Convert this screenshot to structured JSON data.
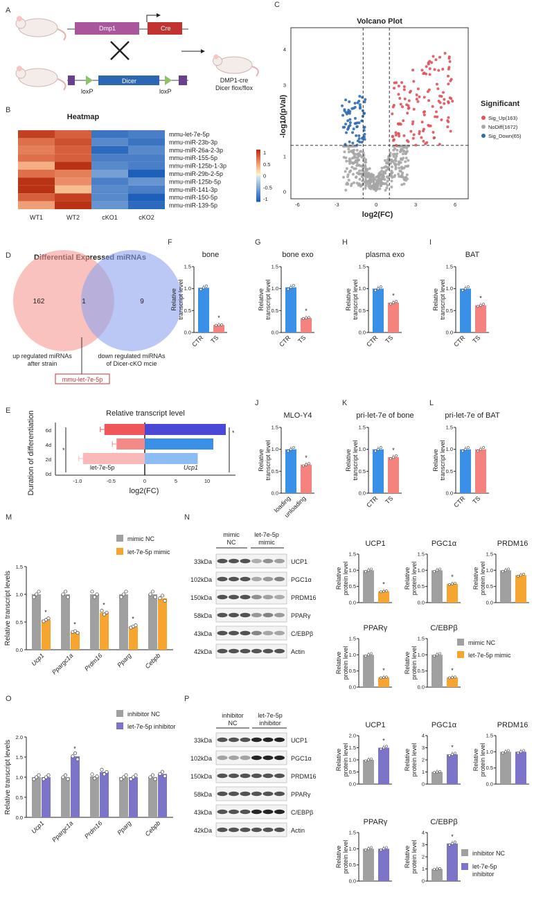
{
  "panels": {
    "A": {
      "label": "A",
      "dmp1": "Dmp1",
      "cre": "Cre",
      "dicer": "Dicer",
      "loxp1": "loxP",
      "loxp2": "loxP",
      "result_line1": "DMP1-cre",
      "result_line2": "Dicer flox/flox"
    },
    "B": {
      "label": "B",
      "title": "Heatmap",
      "samples": [
        "WT1",
        "WT2",
        "cKO1",
        "cKO2"
      ],
      "genes": [
        "mmu-let-7e-5p",
        "mmu-miR-23b-3p",
        "mmu-miR-26a-2-3p",
        "mmu-miR-155-5p",
        "mmu-miR-125b-1-3p",
        "mmu-miR-29b-2-5p",
        "mmu-miR-125b-5p",
        "mmu-miR-141-3p",
        "mmu-miR-150-5p",
        "mmu-miR-139-5p"
      ],
      "values": [
        [
          1.2,
          1.0,
          -1.1,
          -1.0
        ],
        [
          0.9,
          1.1,
          -0.9,
          -1.1
        ],
        [
          0.8,
          1.0,
          -1.2,
          -0.9
        ],
        [
          0.9,
          1.0,
          -1.0,
          -1.0
        ],
        [
          0.5,
          1.3,
          -0.9,
          -1.0
        ],
        [
          0.9,
          0.8,
          -0.7,
          -1.3
        ],
        [
          1.3,
          0.7,
          -1.0,
          -0.8
        ],
        [
          1.3,
          0.4,
          -0.9,
          -1.0
        ],
        [
          1.0,
          1.2,
          -0.9,
          -1.3
        ],
        [
          0.6,
          1.3,
          -0.8,
          -1.2
        ]
      ],
      "scale_ticks": [
        "1",
        "0.5",
        "0",
        "-0.5",
        "-1"
      ]
    },
    "C": {
      "label": "C",
      "title": "Volcano Plot",
      "xlabel": "log2(FC)",
      "ylabel": "-log10(pVal)",
      "xticks": [
        "-6",
        "-3",
        "0",
        "3",
        "6"
      ],
      "yticks": [
        "0",
        "1",
        "2",
        "3",
        "4"
      ],
      "legend_title": "Significant",
      "legend": [
        "Sig_Up(163)",
        "NoDiff(1672)",
        "Sig_Down(65)"
      ],
      "colors": {
        "up": "#e0515b",
        "nodiff": "#a6a6a6",
        "down": "#2f6db2"
      }
    },
    "D": {
      "label": "D",
      "title": "Differential Expressed miRNAs",
      "left_count": "162",
      "overlap_count": "1",
      "right_count": "9",
      "left_caption1": "up regulated miRNAs",
      "left_caption2": "after strain",
      "right_caption1": "down regulated miRNAs",
      "right_caption2": "of Dicer-cKO mcie",
      "callout": "mmu-let-7e-5p"
    },
    "E": {
      "label": "E",
      "title": "Relative transcript level",
      "ylabel": "Duration of differentiation",
      "xlabel": "log2(FC)",
      "categories": [
        "6d",
        "4d",
        "2d",
        "0d"
      ],
      "left_name": "let-7e-5p",
      "right_name": "Ucp1",
      "left_values": [
        -0.6,
        -0.42,
        -0.92,
        0
      ],
      "right_values": [
        13,
        11,
        8.5,
        0
      ],
      "left_ticks": [
        "-1.0",
        "-0.5",
        "0"
      ],
      "right_ticks": [
        "5",
        "10"
      ],
      "star": "*"
    },
    "F": {
      "label": "F",
      "title": "bone"
    },
    "G": {
      "label": "G",
      "title": "bone exo"
    },
    "H": {
      "label": "H",
      "title": "plasma exo"
    },
    "I": {
      "label": "I",
      "title": "BAT"
    },
    "J": {
      "label": "J",
      "title": "MLO-Y4"
    },
    "K": {
      "label": "K",
      "title": "pri-let-7e of bone"
    },
    "L": {
      "label": "L",
      "title": "pri-let-7e of BAT"
    },
    "M": {
      "label": "M",
      "ylabel": "Relative transcript levels",
      "legend": [
        "mimic NC",
        "let-7e-5p mimic"
      ],
      "genes": [
        "Ucp1",
        "Ppargc1a",
        "Prdm16",
        "Pparg",
        "Cebpb"
      ]
    },
    "N": {
      "label": "N",
      "group1": "mimic",
      "group1b": "NC",
      "group2": "let-7e-5p",
      "group2b": "mimic",
      "kda": [
        "33kDa",
        "102kDa",
        "150kDa",
        "58kDa",
        "43kDa",
        "42kDa"
      ],
      "proteins": [
        "UCP1",
        "PGC1α",
        "PRDM16",
        "PPARγ",
        "C/EBPβ",
        "Actin"
      ],
      "legend": [
        "mimic NC",
        "let-7e-5p mimic"
      ]
    },
    "O": {
      "label": "O",
      "ylabel": "Relative transcript levels",
      "legend": [
        "inhibitor NC",
        "let-7e-5p inhibitor"
      ],
      "genes": [
        "Ucp1",
        "Ppargc1a",
        "Prdm16",
        "Pparg",
        "Cebpb"
      ]
    },
    "P": {
      "label": "P",
      "group1": "inhibitor",
      "group1b": "NC",
      "group2": "let-7e-5p",
      "group2b": "inhibitor",
      "kda": [
        "33kDa",
        "102kDa",
        "150kDa",
        "58kDa",
        "43kDa",
        "42kDa"
      ],
      "proteins": [
        "UCP1",
        "PGC1α",
        "PRDM16",
        "PPARγ",
        "C/EBPβ",
        "Actin"
      ],
      "legend": [
        "inhibitor NC",
        "let-7e-5p",
        "inhibitor"
      ]
    }
  },
  "common": {
    "yaxis_relative": "Relative",
    "yaxis_transcript": "transcript level",
    "yaxis_protein": "protein level",
    "star": "*"
  },
  "colors": {
    "ctr": "#3a8fe6",
    "ts": "#f4837d",
    "nc": "#a0a0a0",
    "mimic": "#f7a531",
    "inhibitor": "#7b74c9"
  },
  "chart_data": [
    {
      "type": "bar",
      "title": "bone",
      "categories": [
        "CTR",
        "TS"
      ],
      "values": [
        1.02,
        0.17
      ],
      "ylabel": "Relative transcript level",
      "ylim": [
        0,
        1.5
      ],
      "yticks": [
        "0.0",
        "0.5",
        "1.0",
        "1.5"
      ]
    },
    {
      "type": "bar",
      "title": "bone exo",
      "categories": [
        "CTR",
        "TS"
      ],
      "values": [
        1.03,
        0.33
      ],
      "ylabel": "Relative transcript level",
      "ylim": [
        0,
        1.5
      ],
      "yticks": [
        "0.0",
        "0.5",
        "1.0",
        "1.5"
      ]
    },
    {
      "type": "bar",
      "title": "plasma exo",
      "categories": [
        "CTR",
        "TS"
      ],
      "values": [
        1.0,
        0.68
      ],
      "ylabel": "Relative transcript level",
      "ylim": [
        0,
        1.5
      ],
      "yticks": [
        "0.0",
        "0.5",
        "1.0",
        "1.5"
      ]
    },
    {
      "type": "bar",
      "title": "BAT",
      "categories": [
        "CTR",
        "TS"
      ],
      "values": [
        1.0,
        0.62
      ],
      "ylabel": "Relative transcript level",
      "ylim": [
        0,
        1.5
      ],
      "yticks": [
        "0.0",
        "0.5",
        "1.0",
        "1.5"
      ]
    },
    {
      "type": "bar",
      "title": "MLO-Y4",
      "categories": [
        "loading",
        "unloading"
      ],
      "values": [
        1.0,
        0.65
      ],
      "ylabel": "Relative transcript level",
      "ylim": [
        0,
        1.5
      ],
      "yticks": [
        "0.0",
        "0.5",
        "1.0",
        "1.5"
      ]
    },
    {
      "type": "bar",
      "title": "pri-let-7e of bone",
      "categories": [
        "CTR",
        "TS"
      ],
      "values": [
        1.0,
        0.82
      ],
      "ylabel": "Relative transcript level",
      "ylim": [
        0,
        1.5
      ],
      "yticks": [
        "0.0",
        "0.5",
        "1.0",
        "1.5"
      ]
    },
    {
      "type": "bar",
      "title": "pri-let-7e of BAT",
      "categories": [
        "CTR",
        "TS"
      ],
      "values": [
        1.0,
        1.0
      ],
      "ylabel": "Relative transcript level",
      "ylim": [
        0,
        1.5
      ],
      "yticks": [
        "0.0",
        "0.5",
        "1.0",
        "1.5"
      ]
    },
    {
      "type": "bar",
      "title": "M",
      "categories": [
        "Ucp1",
        "Ppargc1a",
        "Prdm16",
        "Pparg",
        "Cebpb"
      ],
      "series": [
        {
          "name": "mimic NC",
          "values": [
            1.0,
            1.0,
            1.0,
            1.0,
            1.0
          ]
        },
        {
          "name": "let-7e-5p mimic",
          "values": [
            0.54,
            0.32,
            0.67,
            0.42,
            0.93
          ]
        }
      ],
      "ylim": [
        0,
        1.5
      ],
      "yticks": [
        "0.0",
        "0.5",
        "1.0",
        "1.5"
      ]
    },
    {
      "type": "bar",
      "title": "O",
      "categories": [
        "Ucp1",
        "Ppargc1a",
        "Prdm16",
        "Pparg",
        "Cebpb"
      ],
      "series": [
        {
          "name": "inhibitor NC",
          "values": [
            1.0,
            1.0,
            1.02,
            1.0,
            1.0
          ]
        },
        {
          "name": "let-7e-5p inhibitor",
          "values": [
            1.0,
            1.52,
            1.13,
            1.0,
            1.08
          ]
        }
      ],
      "ylim": [
        0,
        2.0
      ],
      "yticks": [
        "0.0",
        "0.5",
        "1.0",
        "1.5",
        "2.0"
      ]
    },
    {
      "type": "bar",
      "title": "N-UCP1",
      "categories": [
        "mimic NC",
        "let-7e-5p mimic"
      ],
      "values": [
        1.0,
        0.35
      ],
      "ylim": [
        0,
        1.5
      ],
      "yticks": [
        "0.0",
        "0.5",
        "1.0",
        "1.5"
      ]
    },
    {
      "type": "bar",
      "title": "N-PGC1α",
      "categories": [
        "mimic NC",
        "let-7e-5p mimic"
      ],
      "values": [
        1.0,
        0.58
      ],
      "ylim": [
        0,
        1.5
      ],
      "yticks": [
        "0.0",
        "0.5",
        "1.0",
        "1.5"
      ]
    },
    {
      "type": "bar",
      "title": "N-PRDM16",
      "categories": [
        "mimic NC",
        "let-7e-5p mimic"
      ],
      "values": [
        1.0,
        0.85
      ],
      "ylim": [
        0,
        1.5
      ],
      "yticks": [
        "0.0",
        "0.5",
        "1.0",
        "1.5"
      ]
    },
    {
      "type": "bar",
      "title": "N-PPARγ",
      "categories": [
        "mimic NC",
        "let-7e-5p mimic"
      ],
      "values": [
        1.0,
        0.3
      ],
      "ylim": [
        0,
        1.5
      ],
      "yticks": [
        "0.0",
        "0.5",
        "1.0",
        "1.5"
      ]
    },
    {
      "type": "bar",
      "title": "N-C/EBPβ",
      "categories": [
        "mimic NC",
        "let-7e-5p mimic"
      ],
      "values": [
        1.0,
        0.3
      ],
      "ylim": [
        0,
        1.5
      ],
      "yticks": [
        "0.0",
        "0.5",
        "1.0",
        "1.5"
      ]
    },
    {
      "type": "bar",
      "title": "P-UCP1",
      "categories": [
        "inhibitor NC",
        "let-7e-5p inhibitor"
      ],
      "values": [
        1.0,
        1.5
      ],
      "ylim": [
        0,
        2.0
      ],
      "yticks": [
        "0.0",
        "0.5",
        "1.0",
        "1.5",
        "2.0"
      ]
    },
    {
      "type": "bar",
      "title": "P-PGC1α",
      "categories": [
        "inhibitor NC",
        "let-7e-5p inhibitor"
      ],
      "values": [
        1.0,
        2.45
      ],
      "ylim": [
        0,
        4
      ],
      "yticks": [
        "0",
        "1",
        "2",
        "3",
        "4"
      ]
    },
    {
      "type": "bar",
      "title": "P-PRDM16",
      "categories": [
        "inhibitor NC",
        "let-7e-5p inhibitor"
      ],
      "values": [
        1.0,
        1.0
      ],
      "ylim": [
        0,
        1.5
      ],
      "yticks": [
        "0.0",
        "0.5",
        "1.0",
        "1.5"
      ]
    },
    {
      "type": "bar",
      "title": "P-PPARγ",
      "categories": [
        "inhibitor NC",
        "let-7e-5p inhibitor"
      ],
      "values": [
        1.0,
        1.0
      ],
      "ylim": [
        0,
        1.5
      ],
      "yticks": [
        "0.0",
        "0.5",
        "1.0",
        "1.5"
      ]
    },
    {
      "type": "bar",
      "title": "P-C/EBPβ",
      "categories": [
        "inhibitor NC",
        "let-7e-5p inhibitor"
      ],
      "values": [
        1.0,
        3.1
      ],
      "ylim": [
        0,
        4
      ],
      "yticks": [
        "0",
        "1",
        "2",
        "3",
        "4"
      ]
    }
  ]
}
